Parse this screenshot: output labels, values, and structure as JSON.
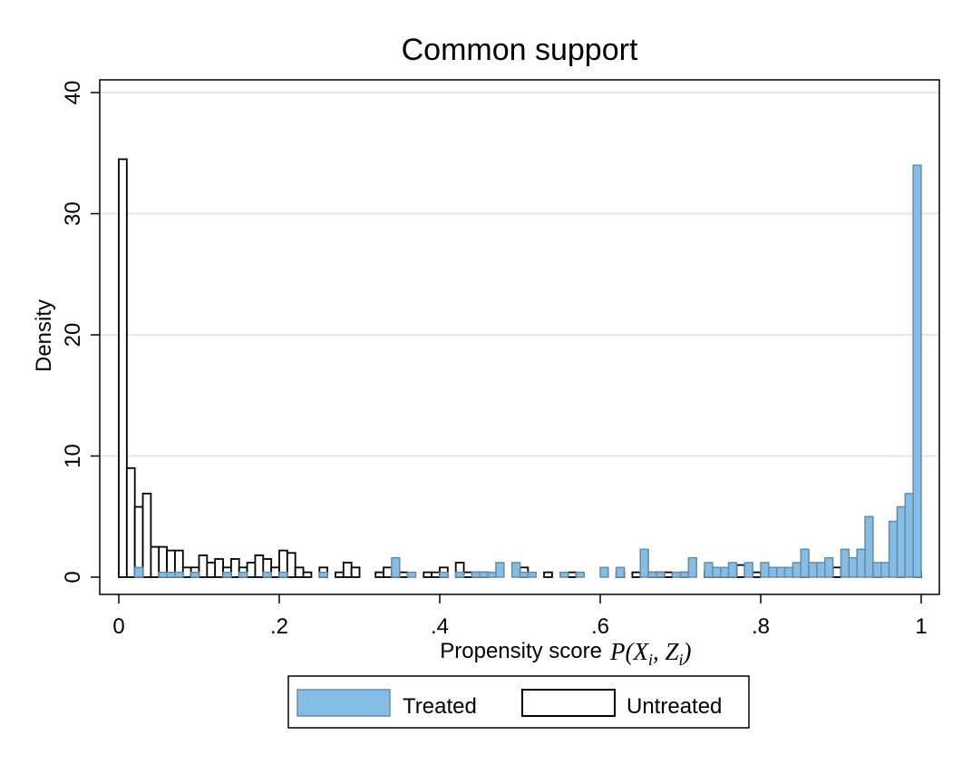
{
  "chart_data": {
    "type": "bar",
    "title": "Common support",
    "xlabel": "Propensity score",
    "xlabel_formula": "P(X",
    "xlabel_formula_sub1": "i",
    "xlabel_formula_mid": ", Z",
    "xlabel_formula_sub2": "i",
    "xlabel_formula_end": ")",
    "ylabel": "Density",
    "xlim": [
      0,
      1
    ],
    "ylim": [
      0,
      40
    ],
    "xticks": [
      0,
      0.2,
      0.4,
      0.6,
      0.8,
      1
    ],
    "xtick_labels": [
      "0",
      ".2",
      ".4",
      ".6",
      ".8",
      "1"
    ],
    "yticks": [
      0,
      10,
      20,
      30,
      40
    ],
    "ytick_labels": [
      "0",
      "10",
      "20",
      "30",
      "40"
    ],
    "grid": true,
    "legend_position": "bottom",
    "bin_width": 0.01,
    "series": [
      {
        "name": "Treated",
        "color": "#84bee6",
        "edge": "#6a8aa3",
        "bins": [
          [
            0.02,
            0.8
          ],
          [
            0.05,
            0.4
          ],
          [
            0.06,
            0.4
          ],
          [
            0.07,
            0.4
          ],
          [
            0.09,
            0.4
          ],
          [
            0.13,
            0.4
          ],
          [
            0.15,
            0.4
          ],
          [
            0.18,
            0.4
          ],
          [
            0.2,
            0.4
          ],
          [
            0.25,
            0.4
          ],
          [
            0.34,
            1.6
          ],
          [
            0.36,
            0.4
          ],
          [
            0.4,
            0.4
          ],
          [
            0.42,
            0.4
          ],
          [
            0.44,
            0.4
          ],
          [
            0.45,
            0.4
          ],
          [
            0.46,
            0.4
          ],
          [
            0.47,
            1.2
          ],
          [
            0.49,
            1.2
          ],
          [
            0.5,
            0.4
          ],
          [
            0.51,
            0.4
          ],
          [
            0.55,
            0.4
          ],
          [
            0.57,
            0.4
          ],
          [
            0.6,
            0.8
          ],
          [
            0.62,
            0.8
          ],
          [
            0.65,
            2.3
          ],
          [
            0.66,
            0.4
          ],
          [
            0.67,
            0.4
          ],
          [
            0.69,
            0.4
          ],
          [
            0.7,
            0.4
          ],
          [
            0.71,
            1.6
          ],
          [
            0.73,
            1.2
          ],
          [
            0.74,
            0.8
          ],
          [
            0.75,
            0.8
          ],
          [
            0.76,
            1.2
          ],
          [
            0.78,
            1.2
          ],
          [
            0.8,
            1.2
          ],
          [
            0.81,
            0.8
          ],
          [
            0.82,
            0.8
          ],
          [
            0.83,
            0.8
          ],
          [
            0.84,
            1.2
          ],
          [
            0.85,
            2.3
          ],
          [
            0.86,
            1.2
          ],
          [
            0.87,
            1.2
          ],
          [
            0.88,
            1.6
          ],
          [
            0.9,
            2.3
          ],
          [
            0.91,
            1.6
          ],
          [
            0.92,
            2.3
          ],
          [
            0.93,
            5.0
          ],
          [
            0.94,
            1.2
          ],
          [
            0.95,
            1.2
          ],
          [
            0.96,
            4.6
          ],
          [
            0.97,
            5.8
          ],
          [
            0.98,
            6.9
          ],
          [
            0.99,
            34.0
          ]
        ]
      },
      {
        "name": "Untreated",
        "color": "#ffffff",
        "edge": "#000000",
        "bins": [
          [
            0.0,
            34.5
          ],
          [
            0.01,
            9.0
          ],
          [
            0.02,
            5.8
          ],
          [
            0.03,
            6.9
          ],
          [
            0.04,
            2.5
          ],
          [
            0.05,
            2.5
          ],
          [
            0.06,
            2.2
          ],
          [
            0.07,
            2.2
          ],
          [
            0.08,
            0.8
          ],
          [
            0.09,
            0.8
          ],
          [
            0.1,
            1.8
          ],
          [
            0.11,
            1.2
          ],
          [
            0.12,
            1.5
          ],
          [
            0.13,
            0.8
          ],
          [
            0.14,
            1.5
          ],
          [
            0.15,
            0.8
          ],
          [
            0.16,
            1.2
          ],
          [
            0.17,
            1.8
          ],
          [
            0.18,
            1.5
          ],
          [
            0.19,
            0.8
          ],
          [
            0.2,
            2.2
          ],
          [
            0.21,
            2.0
          ],
          [
            0.22,
            0.8
          ],
          [
            0.23,
            0.4
          ],
          [
            0.25,
            0.8
          ],
          [
            0.27,
            0.4
          ],
          [
            0.28,
            1.2
          ],
          [
            0.29,
            0.8
          ],
          [
            0.32,
            0.4
          ],
          [
            0.33,
            0.8
          ],
          [
            0.34,
            0.4
          ],
          [
            0.35,
            0.4
          ],
          [
            0.38,
            0.4
          ],
          [
            0.39,
            0.4
          ],
          [
            0.4,
            0.8
          ],
          [
            0.42,
            1.2
          ],
          [
            0.43,
            0.4
          ],
          [
            0.44,
            0.4
          ],
          [
            0.45,
            0.4
          ],
          [
            0.5,
            0.8
          ],
          [
            0.53,
            0.4
          ],
          [
            0.56,
            0.4
          ],
          [
            0.62,
            0.4
          ],
          [
            0.64,
            0.4
          ],
          [
            0.66,
            0.4
          ],
          [
            0.67,
            0.4
          ],
          [
            0.68,
            0.4
          ],
          [
            0.7,
            0.4
          ],
          [
            0.73,
            0.4
          ],
          [
            0.74,
            0.4
          ],
          [
            0.75,
            0.4
          ],
          [
            0.76,
            0.4
          ],
          [
            0.77,
            1.0
          ],
          [
            0.79,
            0.4
          ],
          [
            0.85,
            0.8
          ],
          [
            0.89,
            0.8
          ],
          [
            0.94,
            0.4
          ],
          [
            0.97,
            0.4
          ],
          [
            0.99,
            0.4
          ]
        ]
      }
    ]
  }
}
